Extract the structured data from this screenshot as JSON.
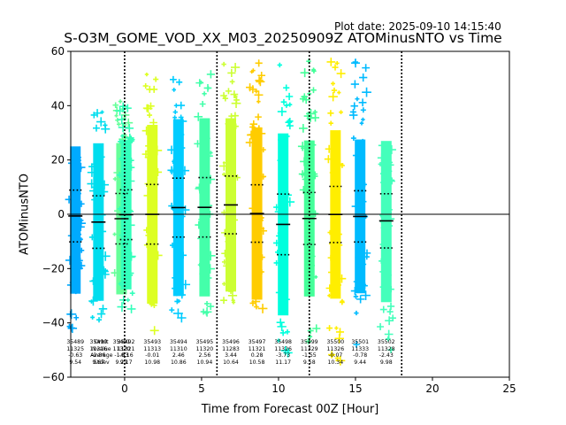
{
  "plot_date": "Plot date: 2025-09-10 14:15:40",
  "chart_data": {
    "type": "scatter",
    "title": "S-O3M_GOME_VOD_XX_M03_20250909Z ATOMinusNTO vs Time",
    "xlabel": "Time from Forecast 00Z [Hour]",
    "ylabel": "ATOMinusNTO",
    "xlim": [
      -3.5,
      25
    ],
    "ylim": [
      -60,
      60
    ],
    "xticks": [
      0,
      5,
      10,
      15,
      20,
      25
    ],
    "yticks": [
      -60,
      -40,
      -20,
      0,
      20,
      40,
      60
    ],
    "zero_line": 0,
    "cycle_lines_x": [
      0,
      6,
      12,
      18
    ],
    "header_labels": [
      "Orbit",
      "Nvalue",
      "Average",
      "Stdev"
    ],
    "header_x": -1.5,
    "orbits": [
      {
        "orbit": "35489",
        "x": -3.2,
        "n": "11325",
        "mean": "-0.63",
        "std": "9.54",
        "ymin": -42,
        "ymax": 25,
        "color": "#00aaff"
      },
      {
        "orbit": "35490",
        "x": -1.7,
        "n": "11316",
        "mean": "-2.86",
        "std": "9.67",
        "ymin": -41,
        "ymax": 41,
        "color": "#00ddee"
      },
      {
        "orbit": "35491",
        "x": -0.2,
        "n": "11320",
        "mean": "-1.63",
        "std": "9.29",
        "ymin": -30,
        "ymax": 42,
        "color": "#66ff99"
      },
      {
        "orbit": "35492",
        "x": 0.1,
        "n": "11321",
        "mean": "-0.16",
        "std": "9.17",
        "ymin": -35,
        "ymax": 42,
        "color": "#33ffbb"
      },
      {
        "orbit": "35493",
        "x": 1.8,
        "n": "11313",
        "mean": "-0.01",
        "std": "10.98",
        "ymin": -45,
        "ymax": 52,
        "color": "#ddff22"
      },
      {
        "orbit": "35494",
        "x": 3.5,
        "n": "11310",
        "mean": "2.46",
        "std": "10.86",
        "ymin": -40,
        "ymax": 50,
        "color": "#00ccff"
      },
      {
        "orbit": "35495",
        "x": 5.2,
        "n": "11320",
        "mean": "2.56",
        "std": "10.94",
        "ymin": -37,
        "ymax": 54,
        "color": "#44ffaa"
      },
      {
        "orbit": "35496",
        "x": 6.9,
        "n": "11283",
        "mean": "3.44",
        "std": "10.64",
        "ymin": -33,
        "ymax": 57,
        "color": "#ccff33"
      },
      {
        "orbit": "35497",
        "x": 8.6,
        "n": "11321",
        "mean": "0.28",
        "std": "10.58",
        "ymin": -36,
        "ymax": 57,
        "color": "#ffcc00"
      },
      {
        "orbit": "35498",
        "x": 10.3,
        "n": "11326",
        "mean": "-3.73",
        "std": "11.17",
        "ymin": -58,
        "ymax": 57,
        "color": "#00ffdd"
      },
      {
        "orbit": "35499",
        "x": 12.0,
        "n": "11329",
        "mean": "-1.55",
        "std": "9.58",
        "ymin": -47,
        "ymax": 57,
        "color": "#44ff99"
      },
      {
        "orbit": "35500",
        "x": 13.7,
        "n": "11326",
        "mean": "-0.07",
        "std": "10.34",
        "ymin": -55,
        "ymax": 58,
        "color": "#ffee00"
      },
      {
        "orbit": "35501",
        "x": 15.3,
        "n": "11333",
        "mean": "-0.78",
        "std": "9.44",
        "ymin": -48,
        "ymax": 58,
        "color": "#00bbff"
      },
      {
        "orbit": "35502",
        "x": 17.0,
        "n": "11328",
        "mean": "-2.43",
        "std": "9.98",
        "ymin": -53,
        "ymax": 27,
        "color": "#44ffbb"
      }
    ]
  }
}
